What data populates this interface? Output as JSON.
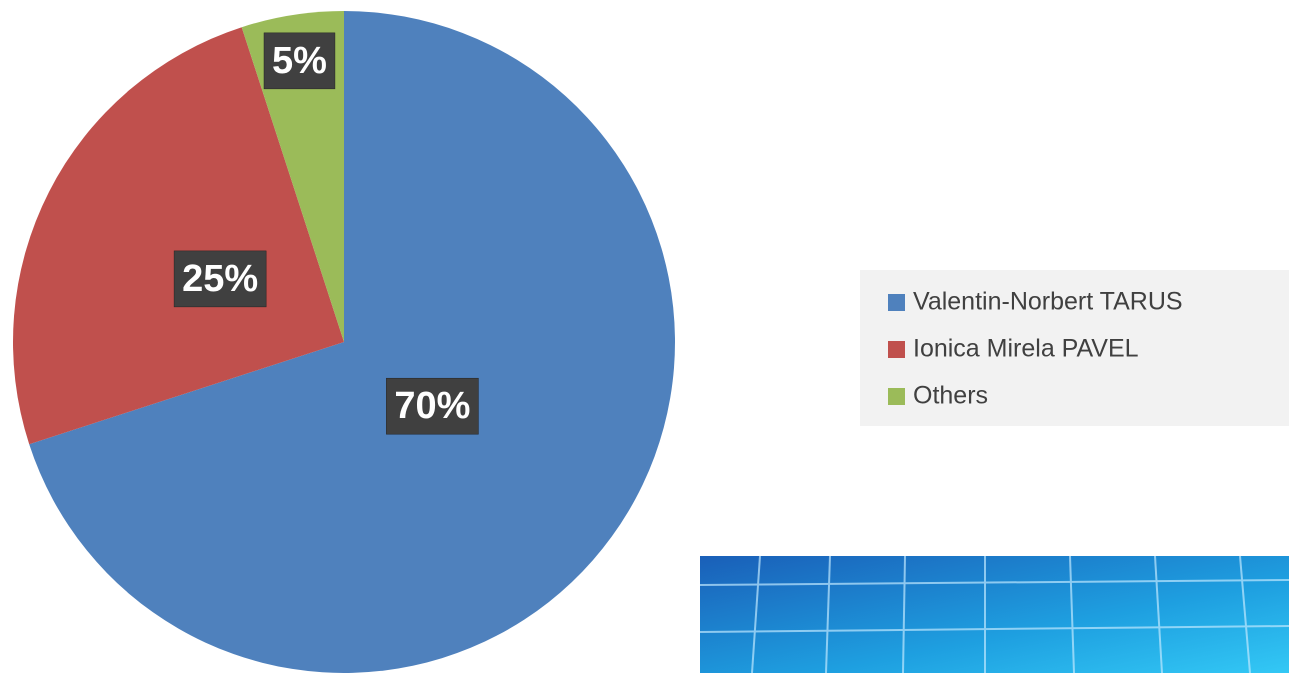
{
  "chart_data": {
    "type": "pie",
    "categories": [
      "Valentin-Norbert TARUS",
      "Ionica Mirela PAVEL",
      "Others"
    ],
    "values": [
      70,
      25,
      5
    ],
    "value_labels": [
      "70%",
      "25%",
      "5%"
    ],
    "colors": [
      "#4f81bd",
      "#c0504d",
      "#9bbb59"
    ],
    "legend": "right"
  }
}
